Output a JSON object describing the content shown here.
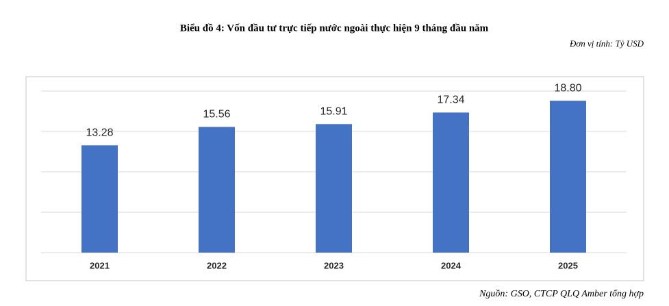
{
  "chart_data": {
    "type": "bar",
    "title": "Biểu đồ 4: Vốn đầu tư trực tiếp nước ngoài thực hiện 9 tháng đầu năm",
    "unit": "Đơn vị tính: Tỷ USD",
    "source": "Nguồn: GSO, CTCP QLQ Amber tổng hợp",
    "categories": [
      "2021",
      "2022",
      "2023",
      "2024",
      "2025"
    ],
    "values": [
      13.28,
      15.56,
      15.91,
      17.34,
      18.8
    ],
    "value_labels": [
      "13.28",
      "15.56",
      "15.91",
      "17.34",
      "18.80"
    ],
    "color": "#4472c4",
    "ylim": [
      0,
      20
    ],
    "yticks": [
      0,
      5,
      10,
      15,
      20
    ],
    "grid": true
  }
}
